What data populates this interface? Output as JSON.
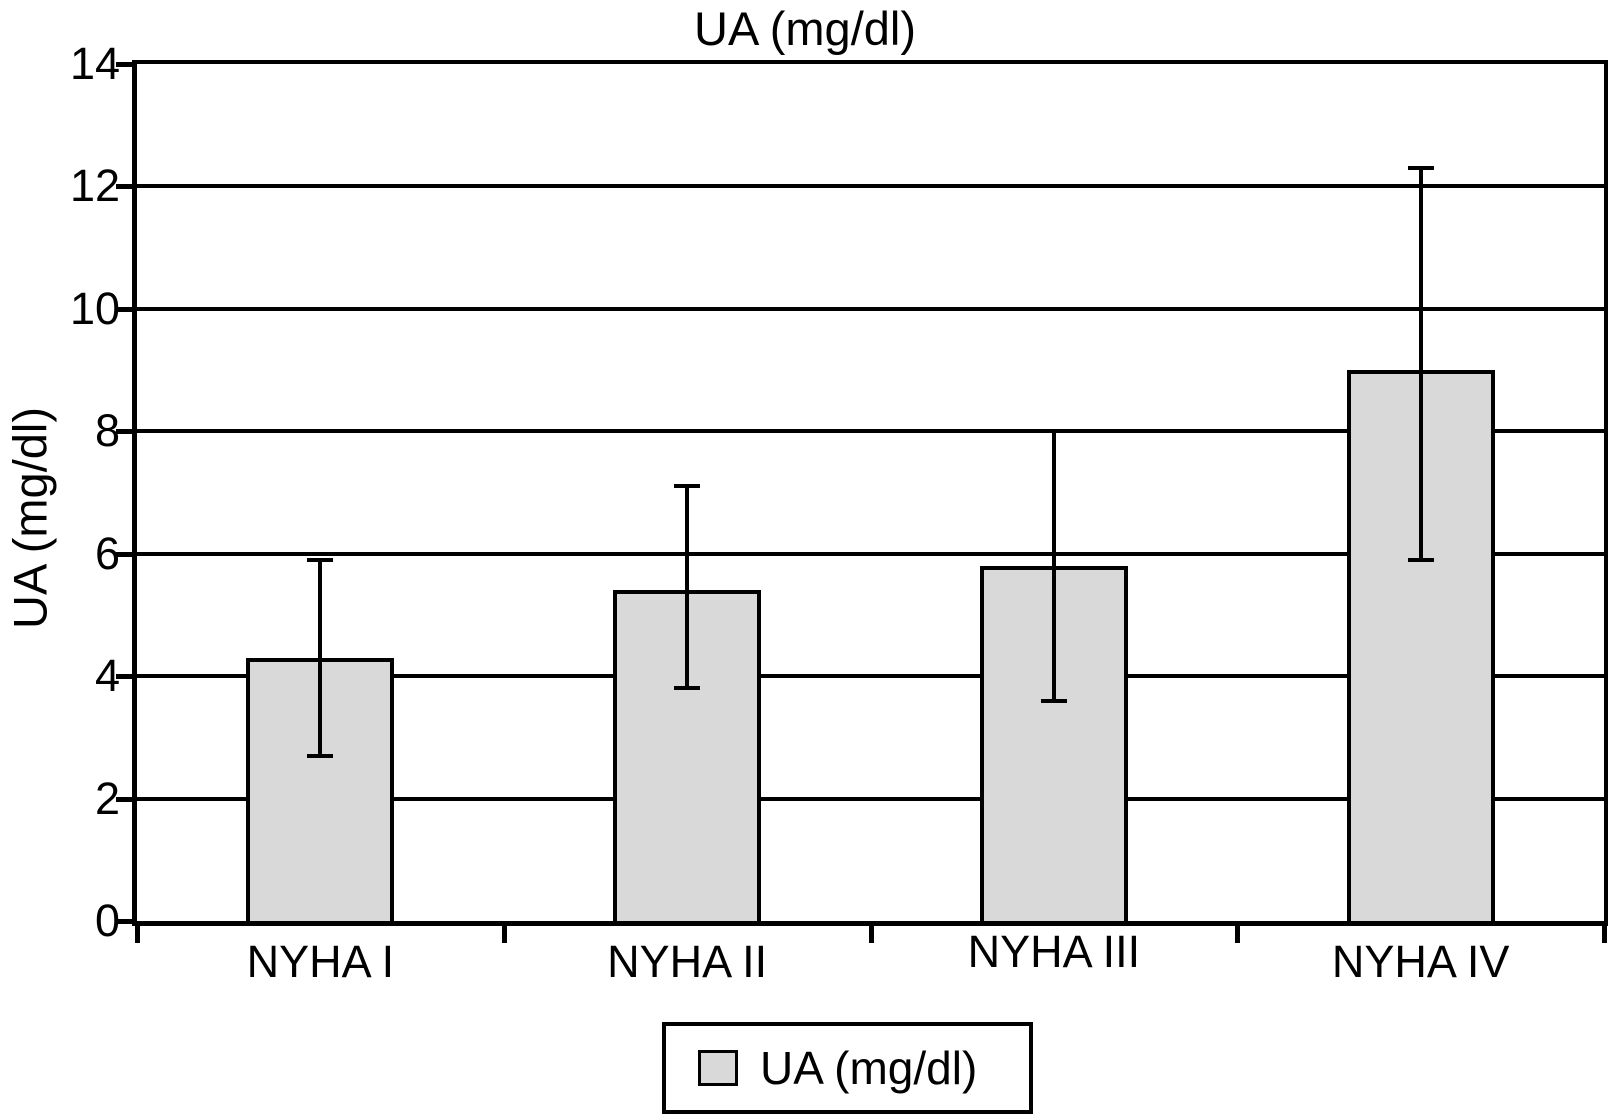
{
  "chart_data": {
    "type": "bar",
    "title": "UA (mg/dl)",
    "xlabel": "",
    "ylabel": "UA (mg/dl)",
    "categories": [
      "NYHA I",
      "NYHA II",
      "NYHA III",
      "NYHA IV"
    ],
    "series": [
      {
        "name": "UA (mg/dl)",
        "values": [
          4.3,
          5.4,
          5.8,
          9.0
        ],
        "error_low": [
          2.7,
          3.8,
          3.6,
          5.9
        ],
        "error_high": [
          5.9,
          7.1,
          8.0,
          12.3
        ]
      }
    ],
    "ylim": [
      0,
      14
    ],
    "yticks": [
      0,
      2,
      4,
      6,
      8,
      10,
      12,
      14
    ],
    "grid": true,
    "legend": {
      "position": "bottom",
      "entries": [
        "UA (mg/dl)"
      ]
    },
    "colors": {
      "bar_fill": "#d9d9d9",
      "line": "#000000",
      "background": "#ffffff"
    }
  }
}
